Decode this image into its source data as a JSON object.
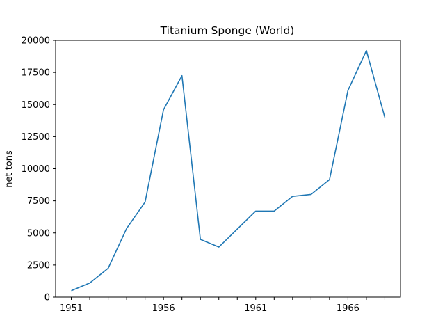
{
  "chart_data": {
    "type": "line",
    "title": "Titanium Sponge (World)",
    "xlabel": "",
    "ylabel": "net tons",
    "x": [
      1951,
      1952,
      1953,
      1954,
      1955,
      1956,
      1957,
      1958,
      1959,
      1960,
      1961,
      1962,
      1963,
      1964,
      1965,
      1966,
      1967,
      1968
    ],
    "series": [
      {
        "values": [
          500,
          1100,
          2250,
          5350,
          7400,
          14600,
          17250,
          4500,
          3900,
          5300,
          6700,
          6700,
          7850,
          8000,
          9150,
          16100,
          19200,
          14000
        ]
      }
    ],
    "xlim": [
      1950.15,
      1968.85
    ],
    "ylim": [
      0,
      20000
    ],
    "x_ticks": [
      1951,
      1952,
      1953,
      1954,
      1955,
      1956,
      1957,
      1958,
      1959,
      1960,
      1961,
      1962,
      1963,
      1964,
      1965,
      1966,
      1967,
      1968
    ],
    "x_tick_labels": [
      "1951",
      "",
      "",
      "",
      "",
      "1956",
      "",
      "",
      "",
      "",
      "1961",
      "",
      "",
      "",
      "",
      "1966",
      "",
      ""
    ],
    "y_ticks": [
      0,
      2500,
      5000,
      7500,
      10000,
      12500,
      15000,
      17500,
      20000
    ],
    "y_tick_labels": [
      "0",
      "2500",
      "5000",
      "7500",
      "10000",
      "12500",
      "15000",
      "17500",
      "20000"
    ],
    "grid": false,
    "colors": {
      "line": "#1f77b4",
      "axes": "#000000"
    }
  }
}
